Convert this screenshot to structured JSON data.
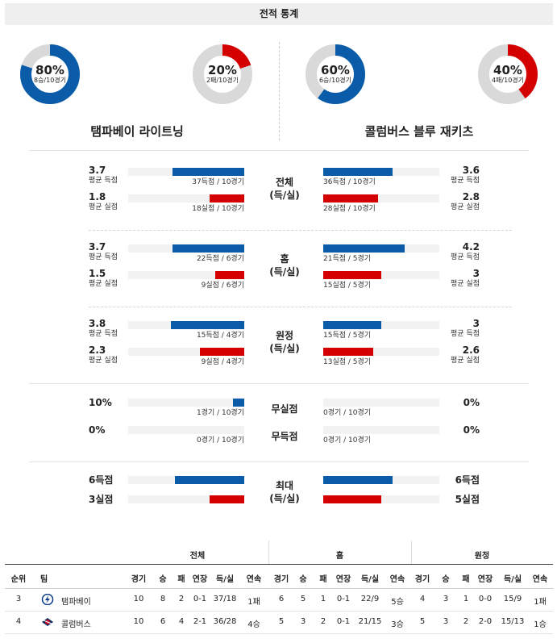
{
  "title": "전적 통계",
  "colors": {
    "blue": "#0a5ca8",
    "red": "#d40000",
    "grey": "#d9d9d9"
  },
  "donuts": [
    {
      "pct": "80%",
      "sub": "8승/10경기",
      "value": 0.8,
      "color": "#0a5ca8"
    },
    {
      "pct": "20%",
      "sub": "2패/10경기",
      "value": 0.2,
      "color": "#d40000"
    },
    {
      "pct": "60%",
      "sub": "6승/10경기",
      "value": 0.6,
      "color": "#0a5ca8"
    },
    {
      "pct": "40%",
      "sub": "4패/10경기",
      "value": 0.4,
      "color": "#d40000"
    }
  ],
  "teams": {
    "left": "탬파베이 라이트닝",
    "right": "콜럼버스 블루 재키츠"
  },
  "sections": [
    {
      "label1": "전체",
      "label2": "(득/실)",
      "rows": [
        {
          "lval": "3.7",
          "llbl": "평균 득점",
          "lcap": "37득점 / 10경기",
          "lfrac": 0.62,
          "color": "blue",
          "rval": "3.6",
          "rlbl": "평균 득점",
          "rcap": "36득점 / 10경기",
          "rfrac": 0.6
        },
        {
          "lval": "1.8",
          "llbl": "평균 실점",
          "lcap": "18실점 / 10경기",
          "lfrac": 0.3,
          "color": "red",
          "rval": "2.8",
          "rlbl": "평균 실점",
          "rcap": "28실점 / 10경기",
          "rfrac": 0.47
        }
      ]
    },
    {
      "label1": "홈",
      "label2": "(득/실)",
      "rows": [
        {
          "lval": "3.7",
          "llbl": "평균 득점",
          "lcap": "22득점 / 6경기",
          "lfrac": 0.62,
          "color": "blue",
          "rval": "4.2",
          "rlbl": "평균 득점",
          "rcap": "21득점 / 5경기",
          "rfrac": 0.7
        },
        {
          "lval": "1.5",
          "llbl": "평균 실점",
          "lcap": "9실점 / 6경기",
          "lfrac": 0.25,
          "color": "red",
          "rval": "3",
          "rlbl": "평균 실점",
          "rcap": "15실점 / 5경기",
          "rfrac": 0.5
        }
      ]
    },
    {
      "label1": "원정",
      "label2": "(득/실)",
      "rows": [
        {
          "lval": "3.8",
          "llbl": "평균 득점",
          "lcap": "15득점 / 4경기",
          "lfrac": 0.63,
          "color": "blue",
          "rval": "3",
          "rlbl": "평균 득점",
          "rcap": "15득점 / 5경기",
          "rfrac": 0.5
        },
        {
          "lval": "2.3",
          "llbl": "평균 실점",
          "lcap": "9실점 / 4경기",
          "lfrac": 0.38,
          "color": "red",
          "rval": "2.6",
          "rlbl": "평균 실점",
          "rcap": "13실점 / 5경기",
          "rfrac": 0.43
        }
      ]
    }
  ],
  "zero_section": {
    "rows": [
      {
        "center": "무실점",
        "lval": "10%",
        "lcap": "1경기 / 10경기",
        "lfrac": 0.1,
        "rval": "0%",
        "rcap": "0경기 / 10경기",
        "rfrac": 0
      },
      {
        "center": "무득점",
        "lval": "0%",
        "lcap": "0경기 / 10경기",
        "lfrac": 0,
        "rval": "0%",
        "rcap": "0경기 / 10경기",
        "rfrac": 0
      }
    ]
  },
  "max_section": {
    "label1": "최대",
    "label2": "(득/실)",
    "rows": [
      {
        "lval": "6득점",
        "lfrac": 0.6,
        "color": "blue",
        "rval": "6득점",
        "rfrac": 0.6
      },
      {
        "lval": "3실점",
        "lfrac": 0.3,
        "color": "red",
        "rval": "5실점",
        "rfrac": 0.5
      }
    ]
  },
  "table": {
    "groups": [
      "전체",
      "홈",
      "원정"
    ],
    "rank_header": "순위",
    "team_header": "팀",
    "sub_headers": [
      "경기",
      "승",
      "패",
      "연장",
      "득/실",
      "연속"
    ],
    "rows": [
      {
        "rank": "3",
        "team": "탬파베이",
        "logo": "lightning-logo",
        "all": [
          "10",
          "8",
          "2",
          "0-1",
          "37/18",
          "1패"
        ],
        "home": [
          "6",
          "5",
          "1",
          "0-1",
          "22/9",
          "5승"
        ],
        "away": [
          "4",
          "3",
          "1",
          "0-0",
          "15/9",
          "1패"
        ]
      },
      {
        "rank": "4",
        "team": "콜럼버스",
        "logo": "blue-jackets-logo",
        "all": [
          "10",
          "6",
          "4",
          "2-1",
          "36/28",
          "4승"
        ],
        "home": [
          "5",
          "3",
          "2",
          "0-1",
          "21/15",
          "3승"
        ],
        "away": [
          "5",
          "3",
          "2",
          "2-0",
          "15/13",
          "1승"
        ]
      }
    ]
  }
}
